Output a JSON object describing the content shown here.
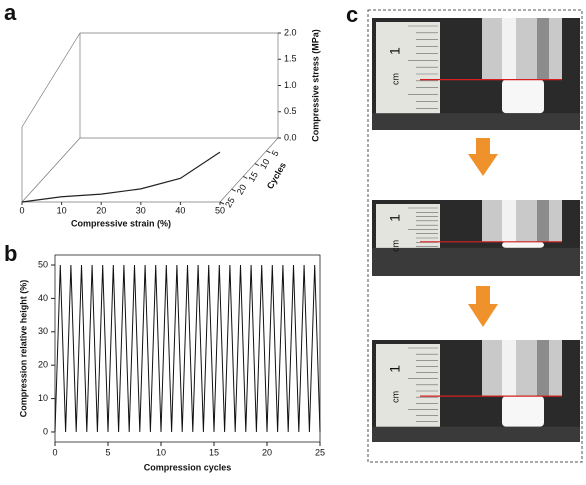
{
  "panel_labels": [
    "a",
    "b",
    "c"
  ],
  "chart_data": [
    {
      "type": "waterfall3d",
      "xlabel": "Compressive strain (%)",
      "ylabel": "Compressive stress (MPa)",
      "zlabel": "Cycles",
      "x": [
        0,
        10,
        20,
        30,
        40,
        50
      ],
      "values": [
        0,
        0.1,
        0.15,
        0.25,
        0.45,
        0.95
      ],
      "color": "#222222",
      "xlim": [
        0,
        50
      ],
      "xticks": [
        0,
        10,
        20,
        30,
        40,
        50
      ],
      "ylim": [
        0,
        2.0
      ],
      "yticks": [
        {
          "value": 0,
          "label": "0.0"
        },
        0.5,
        {
          "value": 1,
          "label": "1.0"
        },
        1.5,
        {
          "value": 2,
          "label": "2.0"
        }
      ],
      "zlim": [
        0,
        25
      ],
      "zticks": [
        5,
        10,
        15,
        20,
        25
      ]
    },
    {
      "type": "line",
      "xlabel": "Compression cycles",
      "ylabel": "Compression relative height (%)",
      "x": [
        0,
        0.5,
        1,
        1.5,
        2,
        2.5,
        3,
        3.5,
        4,
        4.5,
        5,
        5.5,
        6,
        6.5,
        7,
        7.5,
        8,
        8.5,
        9,
        9.5,
        10,
        10.5,
        11,
        11.5,
        12,
        12.5,
        13,
        13.5,
        14,
        14.5,
        15,
        15.5,
        16,
        16.5,
        17,
        17.5,
        18,
        18.5,
        19,
        19.5,
        20,
        20.5,
        21,
        21.5,
        22,
        22.5,
        23,
        23.5,
        24,
        24.5,
        25
      ],
      "values": [
        0,
        50,
        0,
        50,
        0,
        50,
        0,
        50,
        0,
        50,
        0,
        50,
        0,
        50,
        0,
        50,
        0,
        50,
        0,
        50,
        0,
        50,
        0,
        50,
        0,
        50,
        0,
        50,
        0,
        50,
        0,
        50,
        0,
        50,
        0,
        50,
        0,
        50,
        0,
        50,
        0,
        50,
        0,
        50,
        0,
        50,
        0,
        50,
        0,
        50,
        0
      ],
      "color": "#111111",
      "xlim": [
        0,
        25
      ],
      "xticks": [
        0,
        5,
        10,
        15,
        20,
        25
      ],
      "ylim": [
        -3,
        53
      ],
      "yticks": [
        0,
        10,
        20,
        30,
        40,
        50
      ]
    }
  ],
  "photos": [
    {
      "unit": "cm",
      "number": "1"
    },
    {
      "unit": "cm",
      "number": "1"
    },
    {
      "unit": "cm",
      "number": "1"
    }
  ]
}
